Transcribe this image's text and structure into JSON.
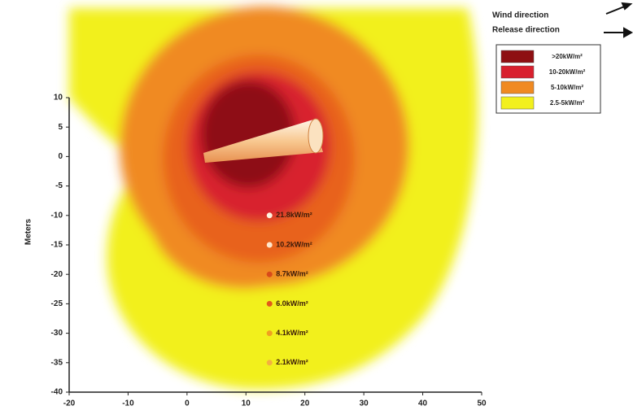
{
  "chart_data": {
    "type": "scatter",
    "ylabel": "Meters",
    "xlim": [
      -20,
      50
    ],
    "ylim": [
      -40,
      10
    ],
    "xticks": [
      -20,
      -10,
      0,
      10,
      20,
      30,
      40,
      50
    ],
    "yticks": [
      10,
      5,
      0,
      -5,
      -10,
      -15,
      -20,
      -25,
      -30,
      -35,
      -40
    ],
    "directions": [
      "Wind direction",
      "Release direction"
    ],
    "zones": [
      {
        "label": ">20kW/m²",
        "color": "#8e0f12"
      },
      {
        "label": "10-20kW/m²",
        "color": "#d8202e"
      },
      {
        "label": "5-10kW/m²",
        "color": "#f08a22"
      },
      {
        "label": "2.5-5kW/m²",
        "color": "#f2f01e"
      }
    ],
    "points": [
      {
        "x": 14,
        "y": -10,
        "label": "21.8kW/m²",
        "color": "#fff4e0"
      },
      {
        "x": 14,
        "y": -15,
        "label": "10.2kW/m²",
        "color": "#ffe6cc"
      },
      {
        "x": 14,
        "y": -20,
        "label": "8.7kW/m²",
        "color": "#d84a1a"
      },
      {
        "x": 14,
        "y": -25,
        "label": "6.0kW/m²",
        "color": "#e25a1a"
      },
      {
        "x": 14,
        "y": -30,
        "label": "4.1kW/m²",
        "color": "#f0a020"
      },
      {
        "x": 14,
        "y": -35,
        "label": "2.1kW/m²",
        "color": "#f4b040"
      }
    ]
  }
}
